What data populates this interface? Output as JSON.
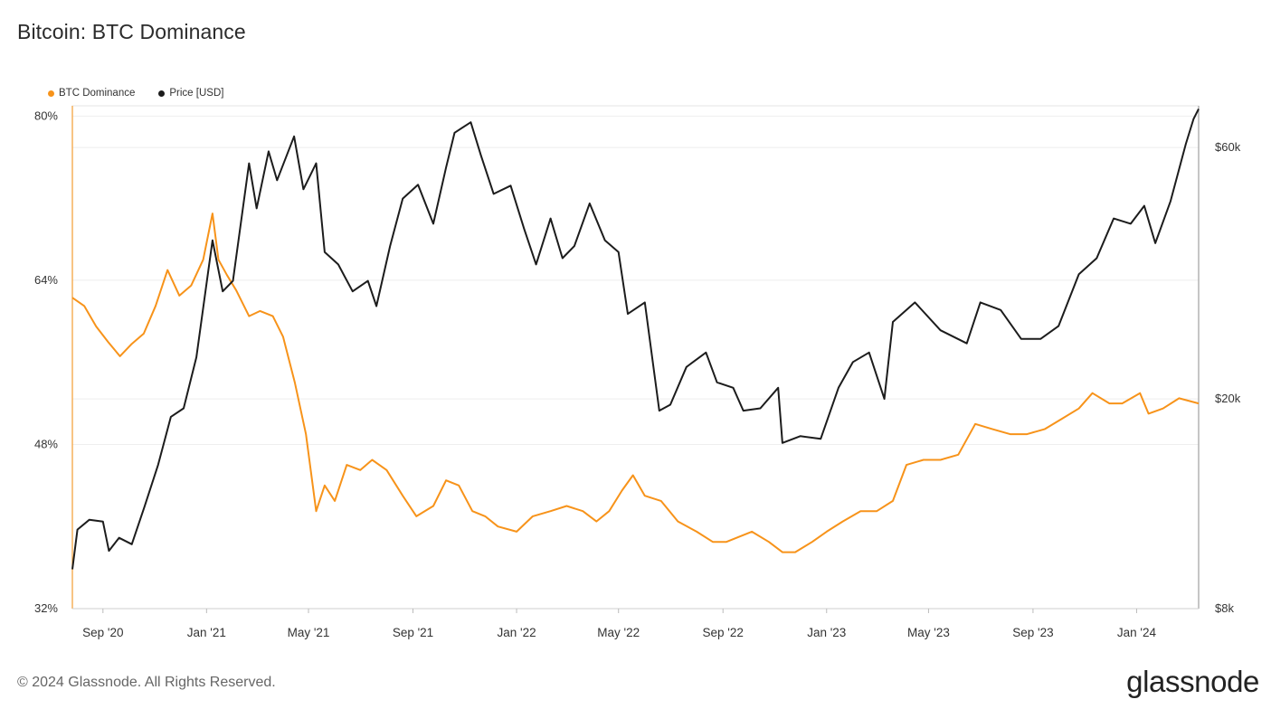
{
  "title": "Bitcoin: BTC Dominance",
  "legend": [
    {
      "label": "BTC Dominance",
      "color": "#f7931a"
    },
    {
      "label": "Price [USD]",
      "color": "#1c1c1c"
    }
  ],
  "footer": "© 2024 Glassnode. All Rights Reserved.",
  "brand": "glassnode",
  "chart_data": {
    "type": "line",
    "title": "Bitcoin: BTC Dominance",
    "x_ticks": [
      "Sep '20",
      "Jan '21",
      "May '21",
      "Sep '21",
      "Jan '22",
      "May '22",
      "Sep '22",
      "Jan '23",
      "May '23",
      "Sep '23",
      "Jan '24"
    ],
    "x_tick_dates": [
      "2020-09-01",
      "2021-01-01",
      "2021-05-01",
      "2021-09-01",
      "2022-01-01",
      "2022-05-01",
      "2022-09-01",
      "2023-01-01",
      "2023-05-01",
      "2023-09-01",
      "2024-01-01"
    ],
    "x_range": [
      "2020-07-27",
      "2024-03-14"
    ],
    "left_axis": {
      "label": "BTC Dominance",
      "ticks": [
        "32%",
        "48%",
        "64%",
        "80%"
      ],
      "ylim": [
        32,
        81
      ]
    },
    "right_axis": {
      "label": "Price [USD]",
      "scale": "log",
      "ticks": [
        "$8k",
        "$20k",
        "$60k"
      ],
      "tick_values": [
        8000,
        20000,
        60000
      ],
      "ylim": [
        8000,
        72000
      ]
    },
    "series": [
      {
        "name": "BTC Dominance",
        "color": "#f7931a",
        "axis": "left",
        "points": [
          [
            "2020-07-27",
            62.3
          ],
          [
            "2020-08-10",
            61.5
          ],
          [
            "2020-08-24",
            59.5
          ],
          [
            "2020-09-07",
            58.0
          ],
          [
            "2020-09-21",
            56.6
          ],
          [
            "2020-10-05",
            57.8
          ],
          [
            "2020-10-19",
            58.8
          ],
          [
            "2020-11-02",
            61.5
          ],
          [
            "2020-11-16",
            65.0
          ],
          [
            "2020-11-30",
            62.5
          ],
          [
            "2020-12-14",
            63.5
          ],
          [
            "2020-12-28",
            66.0
          ],
          [
            "2021-01-08",
            70.5
          ],
          [
            "2021-01-15",
            66.0
          ],
          [
            "2021-01-25",
            64.5
          ],
          [
            "2021-02-05",
            63.0
          ],
          [
            "2021-02-20",
            60.5
          ],
          [
            "2021-03-05",
            61.0
          ],
          [
            "2021-03-20",
            60.5
          ],
          [
            "2021-04-01",
            58.5
          ],
          [
            "2021-04-15",
            54.0
          ],
          [
            "2021-04-28",
            49.0
          ],
          [
            "2021-05-10",
            41.5
          ],
          [
            "2021-05-20",
            44.0
          ],
          [
            "2021-06-01",
            42.5
          ],
          [
            "2021-06-15",
            46.0
          ],
          [
            "2021-07-01",
            45.5
          ],
          [
            "2021-07-15",
            46.5
          ],
          [
            "2021-08-01",
            45.5
          ],
          [
            "2021-08-20",
            43.0
          ],
          [
            "2021-09-05",
            41.0
          ],
          [
            "2021-09-25",
            42.0
          ],
          [
            "2021-10-10",
            44.5
          ],
          [
            "2021-10-25",
            44.0
          ],
          [
            "2021-11-10",
            41.5
          ],
          [
            "2021-11-25",
            41.0
          ],
          [
            "2021-12-10",
            40.0
          ],
          [
            "2022-01-01",
            39.5
          ],
          [
            "2022-01-20",
            41.0
          ],
          [
            "2022-02-10",
            41.5
          ],
          [
            "2022-03-01",
            42.0
          ],
          [
            "2022-03-20",
            41.5
          ],
          [
            "2022-04-05",
            40.5
          ],
          [
            "2022-04-20",
            41.5
          ],
          [
            "2022-05-05",
            43.5
          ],
          [
            "2022-05-18",
            45.0
          ],
          [
            "2022-06-01",
            43.0
          ],
          [
            "2022-06-20",
            42.5
          ],
          [
            "2022-07-10",
            40.5
          ],
          [
            "2022-08-01",
            39.5
          ],
          [
            "2022-08-20",
            38.5
          ],
          [
            "2022-09-05",
            38.5
          ],
          [
            "2022-09-20",
            39.0
          ],
          [
            "2022-10-05",
            39.5
          ],
          [
            "2022-10-25",
            38.5
          ],
          [
            "2022-11-10",
            37.5
          ],
          [
            "2022-11-25",
            37.5
          ],
          [
            "2022-12-15",
            38.5
          ],
          [
            "2023-01-01",
            39.5
          ],
          [
            "2023-01-20",
            40.5
          ],
          [
            "2023-02-10",
            41.5
          ],
          [
            "2023-03-01",
            41.5
          ],
          [
            "2023-03-20",
            42.5
          ],
          [
            "2023-04-05",
            46.0
          ],
          [
            "2023-04-25",
            46.5
          ],
          [
            "2023-05-15",
            46.5
          ],
          [
            "2023-06-05",
            47.0
          ],
          [
            "2023-06-25",
            50.0
          ],
          [
            "2023-07-15",
            49.5
          ],
          [
            "2023-08-05",
            49.0
          ],
          [
            "2023-08-25",
            49.0
          ],
          [
            "2023-09-15",
            49.5
          ],
          [
            "2023-10-05",
            50.5
          ],
          [
            "2023-10-25",
            51.5
          ],
          [
            "2023-11-10",
            53.0
          ],
          [
            "2023-11-30",
            52.0
          ],
          [
            "2023-12-15",
            52.0
          ],
          [
            "2024-01-05",
            53.0
          ],
          [
            "2024-01-15",
            51.0
          ],
          [
            "2024-02-01",
            51.5
          ],
          [
            "2024-02-20",
            52.5
          ],
          [
            "2024-03-14",
            52.0
          ]
        ]
      },
      {
        "name": "Price [USD]",
        "color": "#1c1c1c",
        "axis": "right",
        "points": [
          [
            "2020-07-27",
            9500
          ],
          [
            "2020-08-02",
            11300
          ],
          [
            "2020-08-16",
            11800
          ],
          [
            "2020-09-01",
            11700
          ],
          [
            "2020-09-08",
            10300
          ],
          [
            "2020-09-20",
            10900
          ],
          [
            "2020-10-05",
            10600
          ],
          [
            "2020-10-20",
            12500
          ],
          [
            "2020-11-05",
            15000
          ],
          [
            "2020-11-20",
            18500
          ],
          [
            "2020-12-05",
            19200
          ],
          [
            "2020-12-20",
            24000
          ],
          [
            "2021-01-08",
            40000
          ],
          [
            "2021-01-20",
            32000
          ],
          [
            "2021-02-01",
            33500
          ],
          [
            "2021-02-20",
            56000
          ],
          [
            "2021-03-01",
            46000
          ],
          [
            "2021-03-15",
            59000
          ],
          [
            "2021-03-25",
            52000
          ],
          [
            "2021-04-14",
            63000
          ],
          [
            "2021-04-25",
            50000
          ],
          [
            "2021-05-10",
            56000
          ],
          [
            "2021-05-20",
            38000
          ],
          [
            "2021-06-05",
            36000
          ],
          [
            "2021-06-22",
            32000
          ],
          [
            "2021-07-10",
            33500
          ],
          [
            "2021-07-20",
            30000
          ],
          [
            "2021-08-05",
            39000
          ],
          [
            "2021-08-20",
            48000
          ],
          [
            "2021-09-07",
            51000
          ],
          [
            "2021-09-25",
            43000
          ],
          [
            "2021-10-10",
            55000
          ],
          [
            "2021-10-20",
            64000
          ],
          [
            "2021-11-08",
            67000
          ],
          [
            "2021-11-20",
            58000
          ],
          [
            "2021-12-05",
            49000
          ],
          [
            "2021-12-25",
            50800
          ],
          [
            "2022-01-10",
            42000
          ],
          [
            "2022-01-24",
            36000
          ],
          [
            "2022-02-10",
            44000
          ],
          [
            "2022-02-24",
            37000
          ],
          [
            "2022-03-10",
            39000
          ],
          [
            "2022-03-28",
            47000
          ],
          [
            "2022-04-15",
            40000
          ],
          [
            "2022-05-01",
            38000
          ],
          [
            "2022-05-12",
            29000
          ],
          [
            "2022-06-01",
            30500
          ],
          [
            "2022-06-18",
            19000
          ],
          [
            "2022-07-01",
            19500
          ],
          [
            "2022-07-20",
            23000
          ],
          [
            "2022-08-12",
            24500
          ],
          [
            "2022-08-25",
            21500
          ],
          [
            "2022-09-13",
            21000
          ],
          [
            "2022-09-25",
            19000
          ],
          [
            "2022-10-15",
            19200
          ],
          [
            "2022-11-05",
            21000
          ],
          [
            "2022-11-10",
            16500
          ],
          [
            "2022-12-01",
            17000
          ],
          [
            "2022-12-25",
            16800
          ],
          [
            "2023-01-15",
            21000
          ],
          [
            "2023-02-01",
            23500
          ],
          [
            "2023-02-20",
            24500
          ],
          [
            "2023-03-10",
            20000
          ],
          [
            "2023-03-20",
            28000
          ],
          [
            "2023-04-15",
            30500
          ],
          [
            "2023-05-15",
            27000
          ],
          [
            "2023-06-15",
            25500
          ],
          [
            "2023-07-01",
            30500
          ],
          [
            "2023-07-25",
            29500
          ],
          [
            "2023-08-18",
            26000
          ],
          [
            "2023-09-10",
            26000
          ],
          [
            "2023-10-01",
            27500
          ],
          [
            "2023-10-25",
            34500
          ],
          [
            "2023-11-15",
            37000
          ],
          [
            "2023-12-05",
            44000
          ],
          [
            "2023-12-25",
            43000
          ],
          [
            "2024-01-10",
            46500
          ],
          [
            "2024-01-23",
            39500
          ],
          [
            "2024-02-10",
            47500
          ],
          [
            "2024-02-28",
            61000
          ],
          [
            "2024-03-08",
            68000
          ],
          [
            "2024-03-14",
            71000
          ]
        ]
      }
    ],
    "grid": true,
    "legend_position": "top-left"
  }
}
